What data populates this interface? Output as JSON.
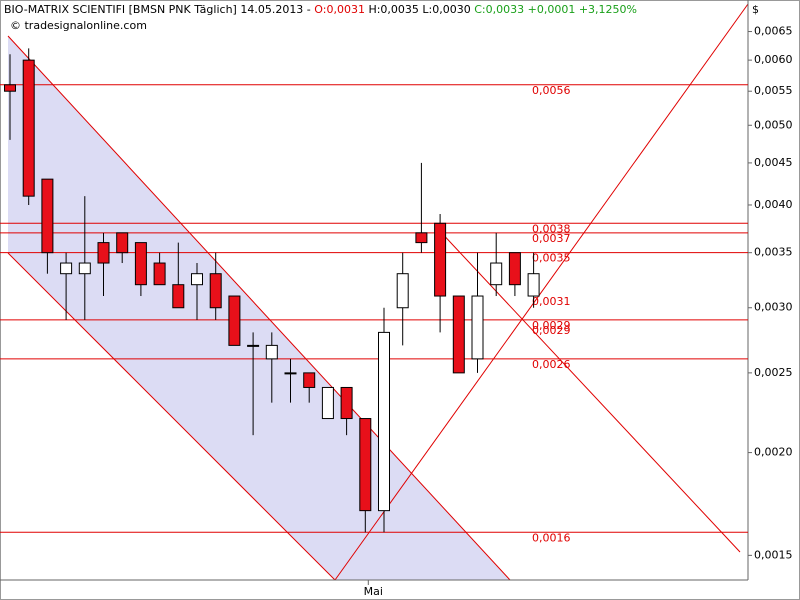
{
  "chart_data": {
    "type": "candlestick",
    "title": "BIO-MATRIX SCIENTIFI [BMSN PNK  Täglich]  14.05.2013 -",
    "open_text": "O:0,0031",
    "hl_text": "H:0,0035 L:0,0030",
    "close_text": "C:0,0033 +0,0001 +3,1250%",
    "source": "© tradesignalonline.com",
    "currency": "$",
    "log_scale": true,
    "up_color": "#ffffff",
    "down_color": "#e8101a",
    "line_color": "#e00000",
    "categories": [
      null,
      null,
      null,
      null,
      null,
      null,
      null,
      null,
      null,
      null,
      null,
      null,
      null,
      null,
      null,
      null,
      null,
      null,
      null,
      "Mai",
      null,
      null,
      null,
      null,
      null,
      null,
      null,
      null,
      null
    ],
    "open": [
      0.0056,
      0.006,
      0.0043,
      0.0033,
      0.0033,
      0.0036,
      0.0037,
      0.0036,
      0.0034,
      0.0032,
      0.0032,
      0.0033,
      0.0031,
      0.0027,
      0.0026,
      0.0025,
      0.0025,
      0.0022,
      0.0024,
      0.0022,
      0.0017,
      0.003,
      0.0037,
      0.0038,
      0.0031,
      0.0026,
      0.0032,
      0.0035,
      0.0031
    ],
    "high": [
      0.0061,
      0.0062,
      0.0043,
      0.0035,
      0.0041,
      0.0037,
      0.0037,
      0.0036,
      0.0035,
      0.0036,
      0.0034,
      0.0035,
      0.0031,
      0.0028,
      0.0028,
      0.0026,
      0.0025,
      0.0024,
      0.0024,
      0.0022,
      0.003,
      0.0035,
      0.0045,
      0.0039,
      0.0031,
      0.0035,
      0.0037,
      0.0035,
      0.0035
    ],
    "low": [
      0.0048,
      0.004,
      0.0033,
      0.0029,
      0.0029,
      0.0031,
      0.0034,
      0.0031,
      0.0032,
      0.003,
      0.0029,
      0.0029,
      0.0027,
      0.0021,
      0.0023,
      0.0023,
      0.0023,
      0.0022,
      0.0021,
      0.0016,
      0.0016,
      0.0027,
      0.0035,
      0.0028,
      0.0025,
      0.0025,
      0.0031,
      0.0031,
      0.003
    ],
    "close": [
      0.0055,
      0.0041,
      0.0035,
      0.0034,
      0.0034,
      0.0034,
      0.0035,
      0.0032,
      0.0032,
      0.003,
      0.0033,
      0.003,
      0.0027,
      0.0027,
      0.0027,
      0.0025,
      0.0024,
      0.0024,
      0.0022,
      0.0017,
      0.0028,
      0.0033,
      0.0036,
      0.0031,
      0.0025,
      0.0031,
      0.0034,
      0.0032,
      0.0033
    ],
    "ylim": [
      0.0014,
      0.0071
    ],
    "yticks": [
      {
        "value": 0.0015,
        "label": "0,0015"
      },
      {
        "value": 0.002,
        "label": "0,0020"
      },
      {
        "value": 0.0025,
        "label": "0,0025"
      },
      {
        "value": 0.003,
        "label": "0,0030"
      },
      {
        "value": 0.0035,
        "label": "0,0035"
      },
      {
        "value": 0.004,
        "label": "0,0040"
      },
      {
        "value": 0.0045,
        "label": "0,0045"
      },
      {
        "value": 0.005,
        "label": "0,0050"
      },
      {
        "value": 0.0055,
        "label": "0,0055"
      },
      {
        "value": 0.006,
        "label": "0,0060"
      },
      {
        "value": 0.0065,
        "label": "0,0065"
      }
    ],
    "levels": [
      {
        "value": 0.0056,
        "label": "0,0056"
      },
      {
        "value": 0.0038,
        "label": "0,0038"
      },
      {
        "value": 0.0037,
        "label": "0,0037"
      },
      {
        "value": 0.0035,
        "label": "0,0035"
      },
      {
        "value": 0.0029,
        "label": "0,0029"
      },
      {
        "value": 0.0026,
        "label": "0,0026"
      },
      {
        "value": 0.0016,
        "label": "0,0016"
      }
    ],
    "level_labels": [
      {
        "value": 0.0031,
        "label": "0,0031"
      },
      {
        "value": 0.00286,
        "label": "0,0029"
      }
    ]
  }
}
